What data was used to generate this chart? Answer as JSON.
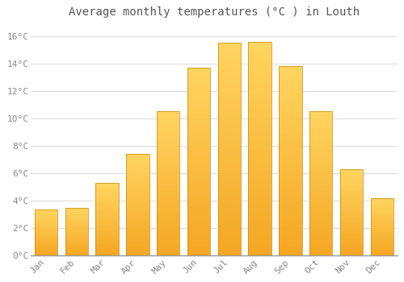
{
  "title": "Average monthly temperatures (°C ) in Louth",
  "months": [
    "Jan",
    "Feb",
    "Mar",
    "Apr",
    "May",
    "Jun",
    "Jul",
    "Aug",
    "Sep",
    "Oct",
    "Nov",
    "Dec"
  ],
  "values": [
    3.4,
    3.5,
    5.3,
    7.4,
    10.5,
    13.7,
    15.5,
    15.6,
    13.8,
    10.5,
    6.3,
    4.2
  ],
  "bar_color_bottom": "#F5A623",
  "bar_color_top": "#FFD966",
  "bar_edge_color": "#C8860A",
  "background_color": "#ffffff",
  "grid_color": "#dddddd",
  "text_color": "#888888",
  "title_color": "#555555",
  "ylim": [
    0,
    17
  ],
  "yticks": [
    0,
    2,
    4,
    6,
    8,
    10,
    12,
    14,
    16
  ],
  "ytick_labels": [
    "0°C",
    "2°C",
    "4°C",
    "6°C",
    "8°C",
    "10°C",
    "12°C",
    "14°C",
    "16°C"
  ],
  "title_fontsize": 10,
  "tick_fontsize": 8,
  "bar_width": 0.75
}
